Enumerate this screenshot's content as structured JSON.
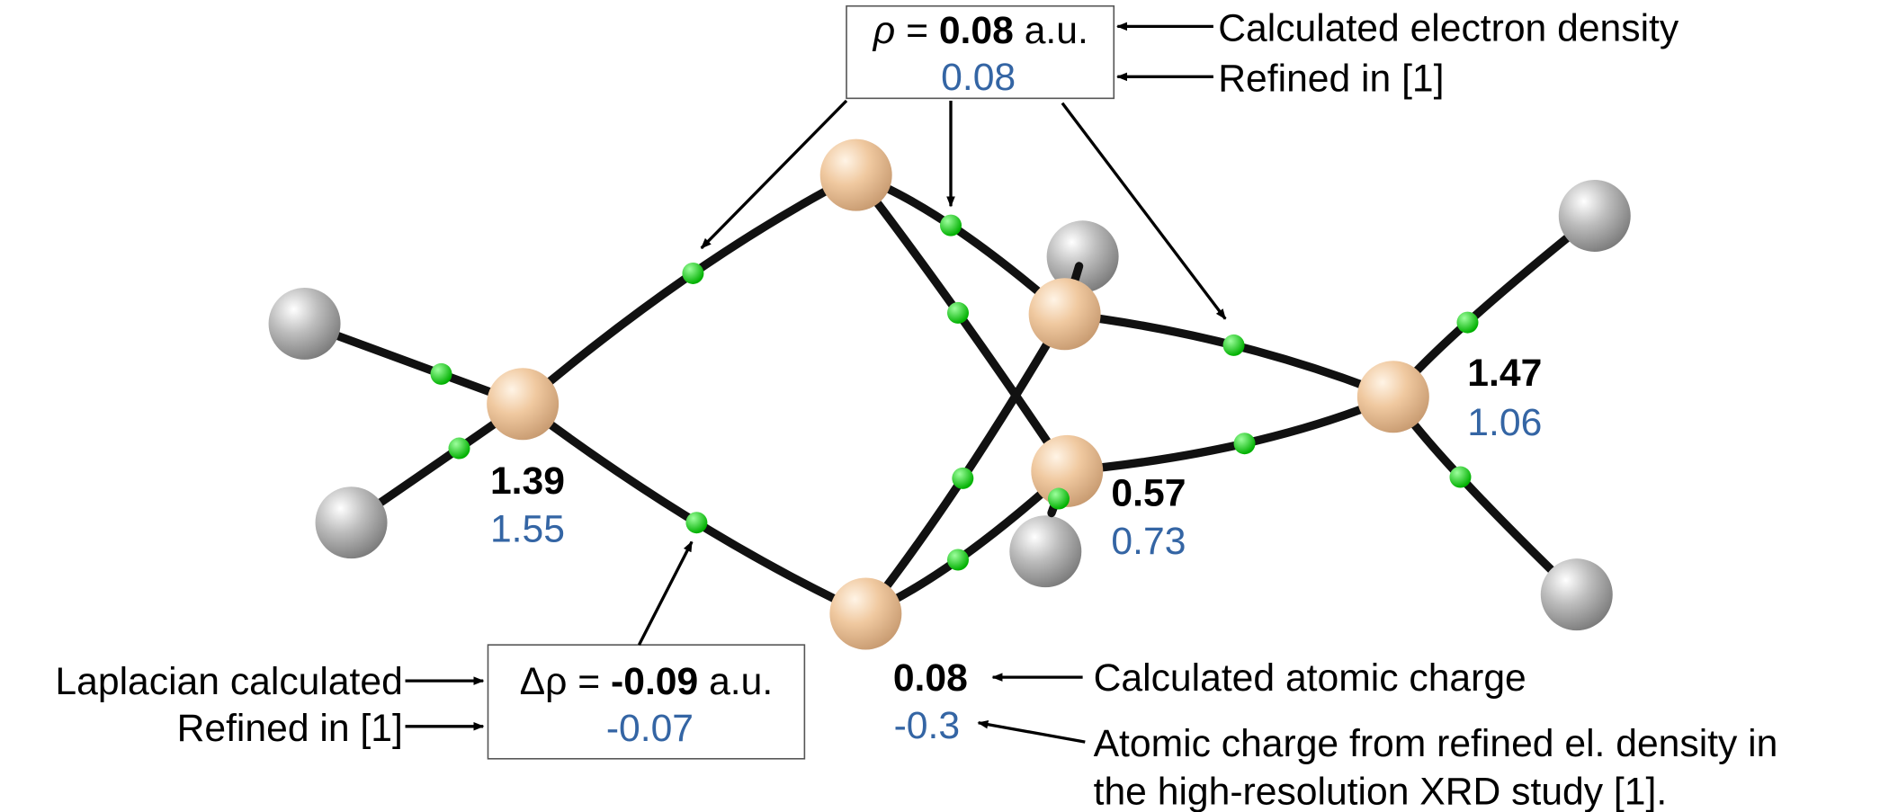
{
  "rho_box": {
    "symbol": "ρ",
    "equals": "=",
    "value": "0.08",
    "unit": "a.u.",
    "refined": "0.08"
  },
  "rho_notes": [
    "Calculated electron density",
    "Refined in [1]"
  ],
  "laplacian_box": {
    "symbol": "Δρ",
    "equals": "=",
    "value": "-0.09",
    "unit": "a.u.",
    "refined": "-0.07"
  },
  "laplacian_notes": [
    "Laplacian calculated",
    "Refined in [1]"
  ],
  "atom_charges": [
    {
      "calculated": "1.39",
      "refined": "1.55"
    },
    {
      "calculated": "0.57",
      "refined": "0.73"
    },
    {
      "calculated": "1.47",
      "refined": "1.06"
    },
    {
      "calculated": "0.08",
      "refined": "-0.3"
    }
  ],
  "charge_notes": {
    "calculated": "Calculated atomic charge",
    "refined": [
      "Atomic charge from refined el. density in",
      "the high-resolution XRD study [1]."
    ]
  }
}
